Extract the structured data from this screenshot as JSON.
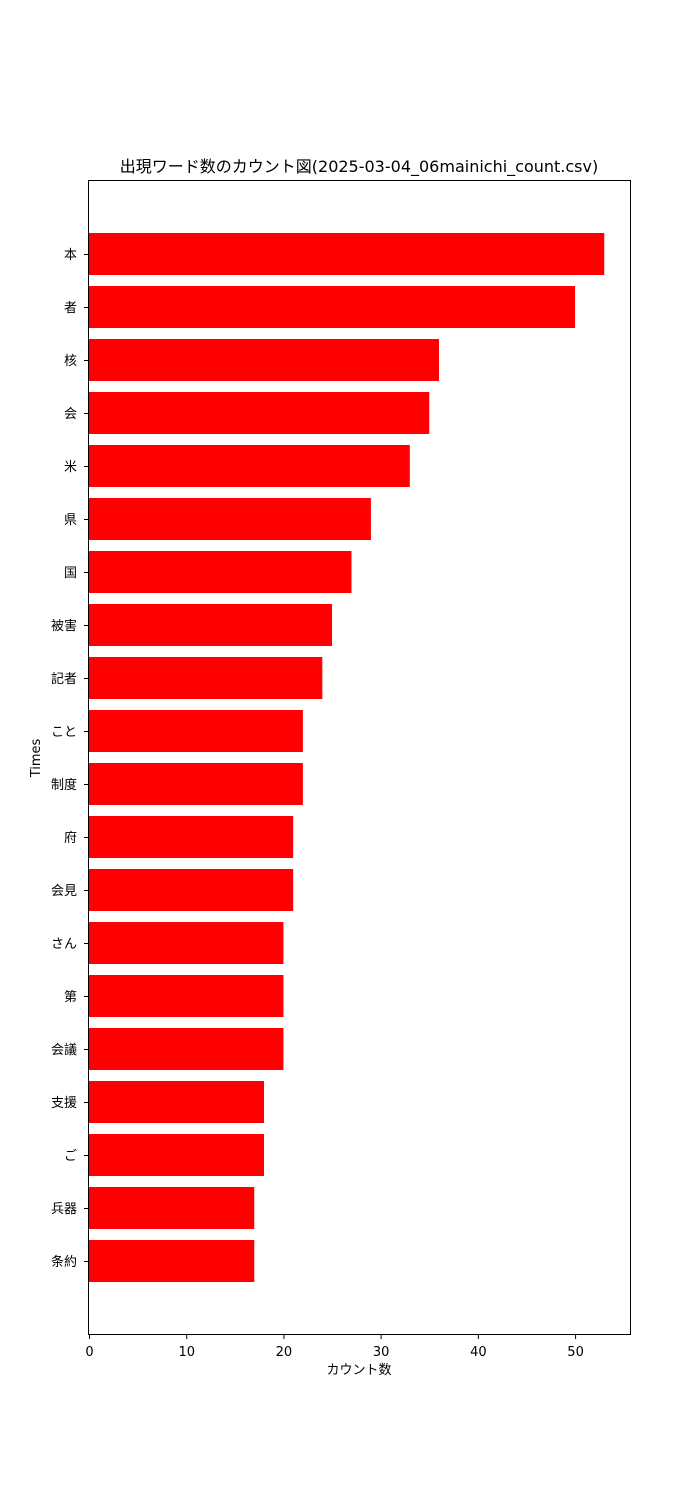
{
  "chart_data": {
    "type": "bar",
    "orientation": "horizontal",
    "title": "出現ワード数のカウント図(2025-03-04_06mainichi_count.csv)",
    "xlabel": "カウント数",
    "ylabel": "Times",
    "categories": [
      "本",
      "者",
      "核",
      "会",
      "米",
      "県",
      "国",
      "被害",
      "記者",
      "こと",
      "制度",
      "府",
      "会見",
      "さん",
      "第",
      "会議",
      "支援",
      "ご",
      "兵器",
      "条約"
    ],
    "values": [
      53,
      50,
      36,
      35,
      33,
      29,
      27,
      25,
      24,
      22,
      22,
      21,
      21,
      20,
      20,
      20,
      18,
      18,
      17,
      17
    ],
    "xlim": [
      0,
      55.65
    ],
    "xticks": [
      0,
      10,
      20,
      30,
      40,
      50
    ],
    "bar_color": "#ff0000",
    "grid": false,
    "legend": "none"
  }
}
